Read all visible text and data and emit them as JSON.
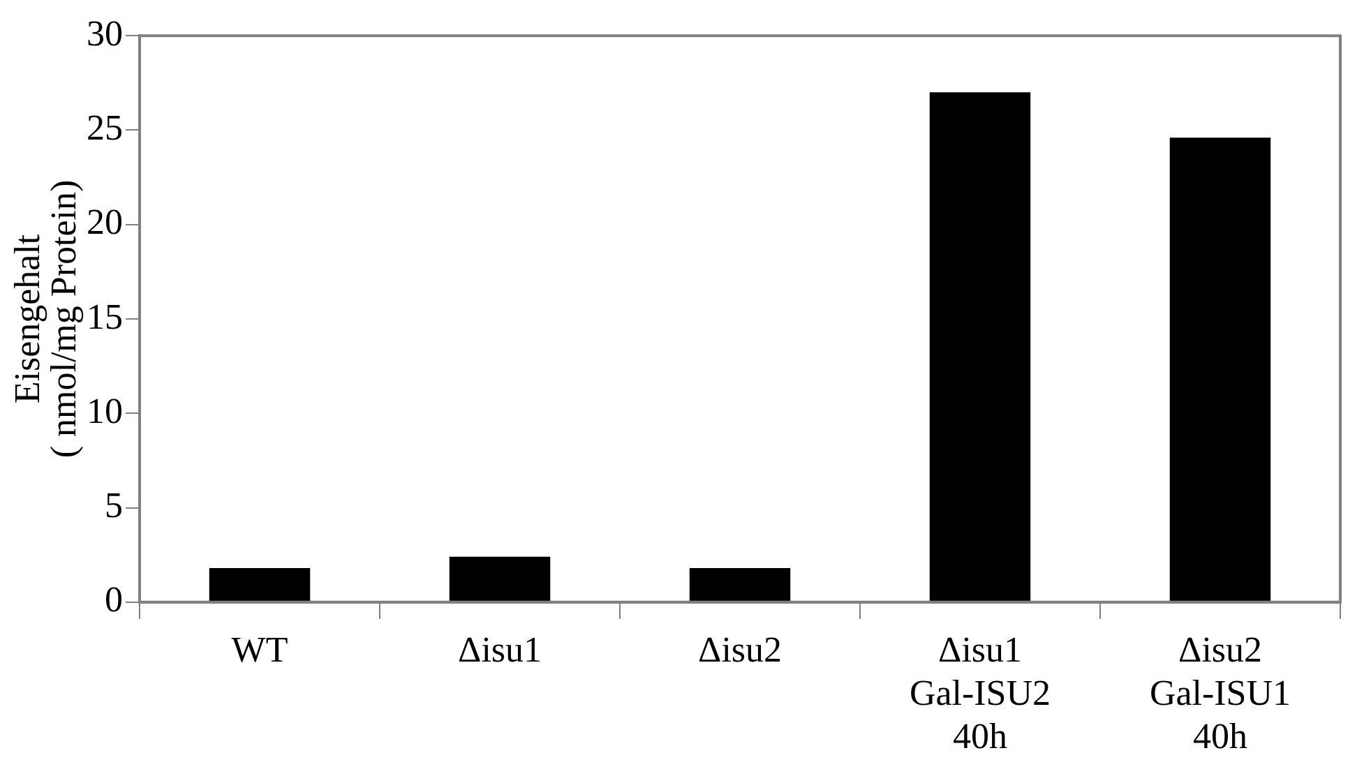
{
  "chart_data": {
    "type": "bar",
    "ylabel": "Eisengehalt\n( nmol/mg Protein)",
    "categories": [
      "WT",
      "Δisu1",
      "Δisu2",
      "Δisu1\nGal-ISU2\n40h",
      "Δisu2\nGal-ISU1\n40h"
    ],
    "values": [
      1.8,
      2.4,
      1.8,
      27.0,
      24.6
    ],
    "color": "#000000",
    "ylim": [
      0,
      30
    ],
    "yticks": [
      0,
      5,
      10,
      15,
      20,
      25,
      30
    ],
    "grid": false,
    "legend": false
  }
}
